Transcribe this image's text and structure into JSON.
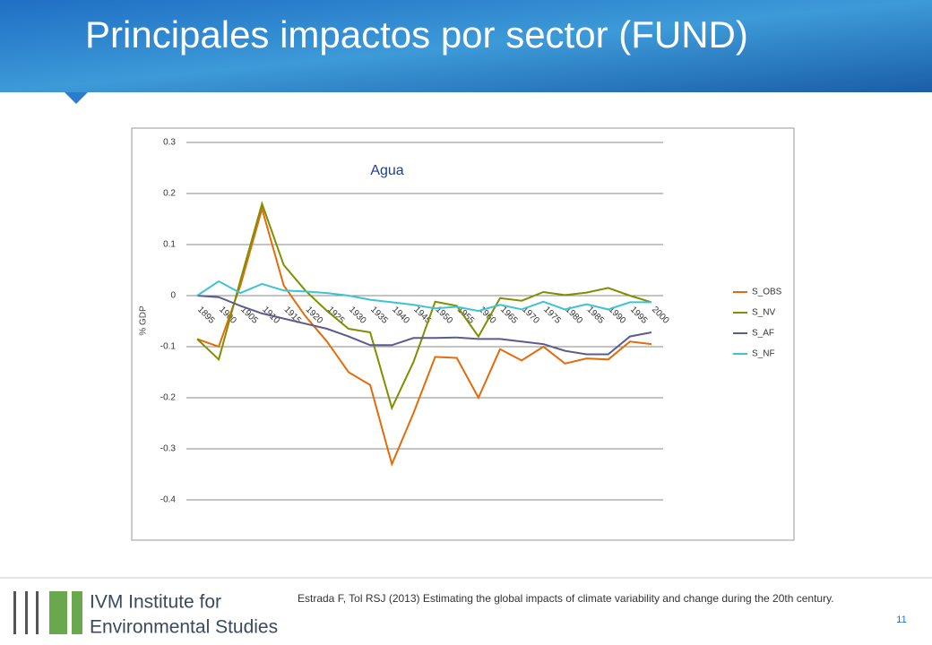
{
  "header": {
    "title": "Principales impactos por sector (FUND)"
  },
  "chart_data": {
    "type": "line",
    "title": "Agua",
    "y_label": "% GDP",
    "categories": [
      "1895",
      "1900",
      "1905",
      "1910",
      "1915",
      "1920",
      "1925",
      "1930",
      "1935",
      "1940",
      "1945",
      "1950",
      "1955",
      "1960",
      "1965",
      "1970",
      "1975",
      "1980",
      "1985",
      "1990",
      "1995",
      "2000"
    ],
    "series": [
      {
        "name": "S_OBS",
        "color": "#e36c0a",
        "values": [
          -0.085,
          -0.1,
          0.02,
          0.17,
          0.02,
          -0.04,
          -0.09,
          -0.15,
          -0.175,
          -0.33,
          -0.23,
          -0.12,
          -0.122,
          -0.2,
          -0.105,
          -0.127,
          -0.1,
          -0.133,
          -0.123,
          -0.125,
          -0.09,
          -0.095
        ]
      },
      {
        "name": "S_NV",
        "color": "#7f8f00",
        "values": [
          -0.085,
          -0.125,
          0.03,
          0.18,
          0.06,
          0.01,
          -0.03,
          -0.065,
          -0.072,
          -0.22,
          -0.13,
          -0.012,
          -0.02,
          -0.08,
          -0.005,
          -0.01,
          0.007,
          0.001,
          0.006,
          0.015,
          0.0,
          -0.013
        ]
      },
      {
        "name": "S_AF",
        "color": "#5b5b8f",
        "values": [
          0,
          -0.003,
          -0.02,
          -0.035,
          -0.045,
          -0.055,
          -0.065,
          -0.08,
          -0.097,
          -0.097,
          -0.083,
          -0.083,
          -0.082,
          -0.085,
          -0.085,
          -0.09,
          -0.095,
          -0.108,
          -0.115,
          -0.115,
          -0.08,
          -0.072
        ]
      },
      {
        "name": "S_NF",
        "color": "#3cc3d4",
        "values": [
          0,
          0.028,
          0.005,
          0.023,
          0.01,
          0.008,
          0.005,
          0.0,
          -0.008,
          -0.013,
          -0.018,
          -0.025,
          -0.022,
          -0.03,
          -0.018,
          -0.027,
          -0.012,
          -0.027,
          -0.017,
          -0.027,
          -0.013,
          -0.013
        ]
      }
    ],
    "ylim": [
      -0.4,
      0.3
    ],
    "yticks": [
      0.3,
      0.2,
      0.1,
      0,
      -0.1,
      -0.2,
      -0.3,
      -0.4
    ],
    "grid": true,
    "legend": "right"
  },
  "footer": {
    "logo": [
      "IVM Institute for",
      "Environmental Studies"
    ],
    "citation": "Estrada F, Tol RSJ (2013) Estimating the global impacts of climate variability and change during the 20th century.",
    "page": "11"
  }
}
